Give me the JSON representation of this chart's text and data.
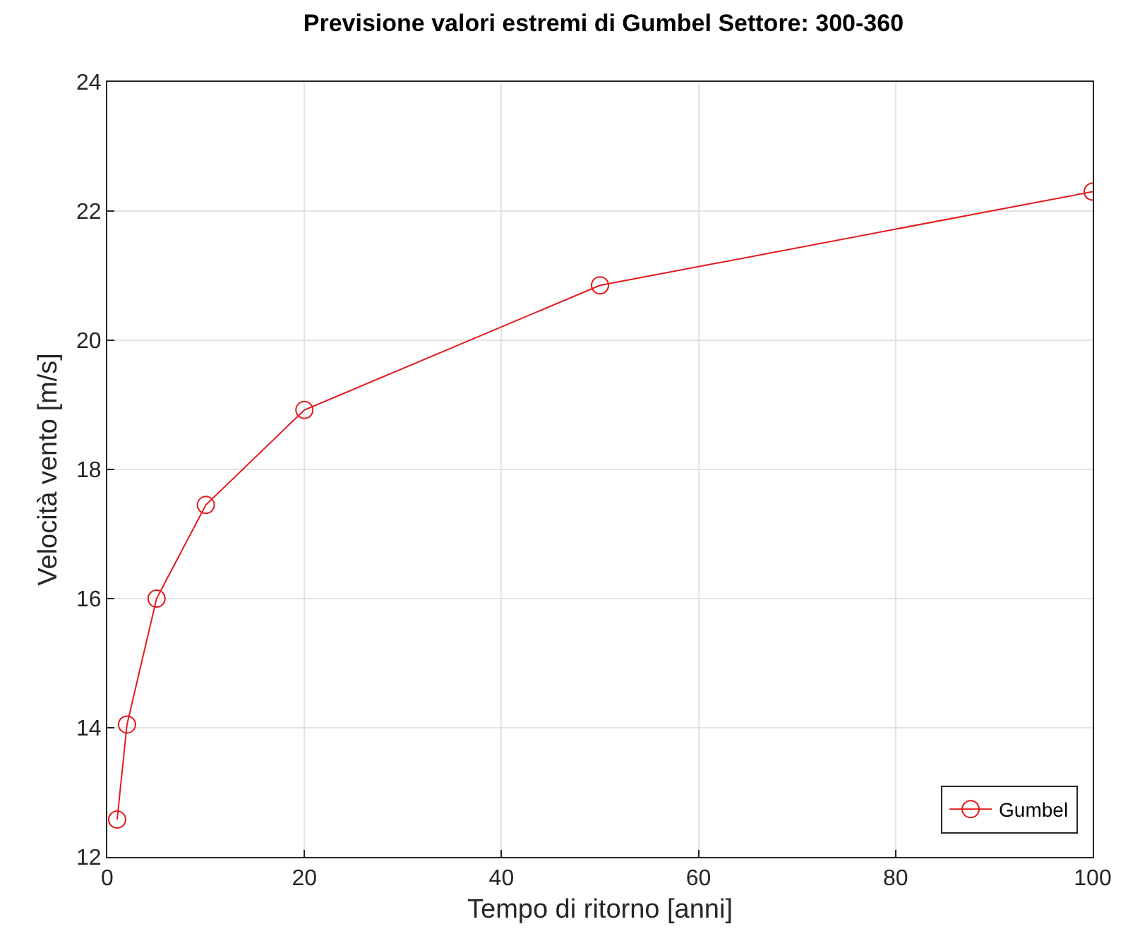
{
  "chart_data": {
    "type": "line",
    "title": "Previsione valori estremi di Gumbel Settore: 300-360",
    "xlabel": "Tempo di ritorno [anni]",
    "ylabel": "Velocità vento [m/s]",
    "x": [
      1,
      2,
      5,
      10,
      20,
      50,
      100
    ],
    "series": [
      {
        "name": "Gumbel",
        "color": "#e31a1c",
        "values": [
          12.58,
          14.05,
          16.0,
          17.45,
          18.92,
          20.85,
          22.3
        ]
      }
    ],
    "xlim": [
      0,
      100
    ],
    "xticks": [
      0,
      20,
      40,
      60,
      80,
      100
    ],
    "ylim": [
      12,
      24
    ],
    "yticks": [
      12,
      14,
      16,
      18,
      20,
      22,
      24
    ],
    "grid": true,
    "legend": "bottom right",
    "marker": "circle",
    "line_style": "solid"
  }
}
